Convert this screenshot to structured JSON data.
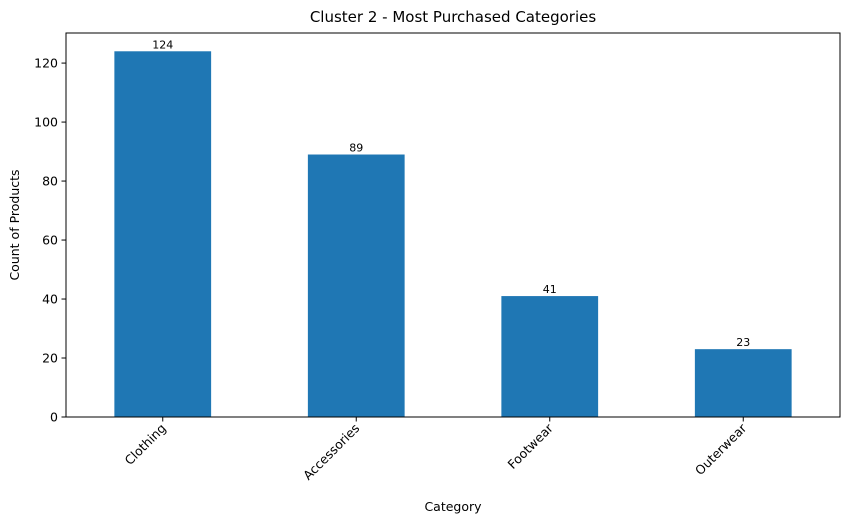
{
  "chart_data": {
    "type": "bar",
    "title": "Cluster 2 - Most Purchased Categories",
    "xlabel": "Category",
    "ylabel": "Count of Products",
    "categories": [
      "Clothing",
      "Accessories",
      "Footwear",
      "Outerwear"
    ],
    "values": [
      124,
      89,
      41,
      23
    ],
    "data_labels": [
      "124",
      "89",
      "41",
      "23"
    ],
    "yticks": [
      0,
      20,
      40,
      60,
      80,
      100,
      120
    ],
    "ylim": [
      0,
      130.2
    ],
    "grid": false,
    "bar_color": "#1f77b4",
    "x_tick_rotation": -45
  }
}
